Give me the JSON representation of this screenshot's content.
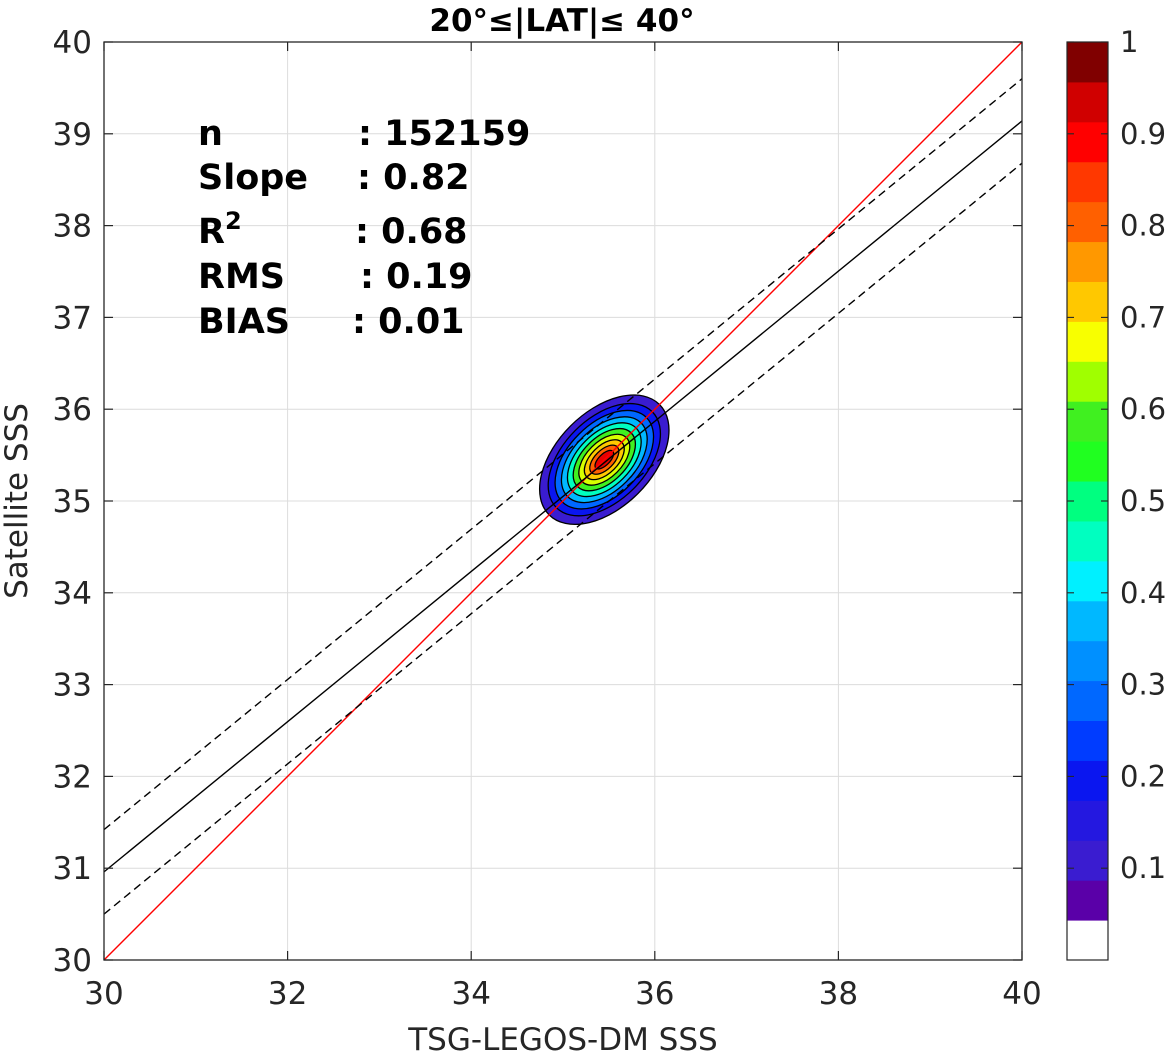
{
  "chart_data": {
    "type": "contour",
    "title": "20°≤|LAT|≤ 40°",
    "xlabel": "TSG-LEGOS-DM SSS",
    "ylabel": "Satellite SSS",
    "xlim": [
      30,
      40
    ],
    "ylim": [
      30,
      40
    ],
    "xticks": [
      "30",
      "32",
      "34",
      "36",
      "38",
      "40"
    ],
    "yticks": [
      "30",
      "31",
      "32",
      "33",
      "34",
      "35",
      "36",
      "37",
      "38",
      "39",
      "40"
    ],
    "grid": true,
    "stats": [
      {
        "label": "n",
        "sup": "",
        "value": ": 152159"
      },
      {
        "label": "Slope",
        "sup": "",
        "value": ": 0.82"
      },
      {
        "label": "R",
        "sup": "2",
        "value": ": 0.68"
      },
      {
        "label": "RMS",
        "sup": "",
        "value": ": 0.19"
      },
      {
        "label": "BIAS",
        "sup": "",
        "value": ": 0.01"
      }
    ],
    "lines": [
      {
        "name": "identity",
        "color": "#ff0000",
        "style": "solid",
        "x": [
          30,
          40
        ],
        "y": [
          30,
          40
        ]
      },
      {
        "name": "regression",
        "color": "#000000",
        "style": "solid",
        "x": [
          30,
          40
        ],
        "y": [
          30.96,
          39.14
        ]
      },
      {
        "name": "upper",
        "color": "#000000",
        "style": "dashed",
        "x": [
          30,
          40
        ],
        "y": [
          31.42,
          39.6
        ]
      },
      {
        "name": "lower",
        "color": "#000000",
        "style": "dashed",
        "x": [
          30,
          40
        ],
        "y": [
          30.5,
          38.68
        ]
      }
    ],
    "density_contours": {
      "center": [
        35.45,
        35.45
      ],
      "rotation_deg": 45,
      "outer_semi_axes": [
        0.85,
        0.52
      ],
      "inner_semi_axes": [
        0.13,
        0.06
      ],
      "levels": [
        0.05,
        0.15,
        0.25,
        0.35,
        0.45,
        0.55,
        0.65,
        0.75,
        0.85,
        0.95
      ],
      "colors": [
        "#3a1cd0",
        "#0a16f0",
        "#0068ff",
        "#00b8ff",
        "#00ffc0",
        "#40f020",
        "#d8ff00",
        "#ffc800",
        "#ff6000",
        "#e80000"
      ]
    },
    "colorbar": {
      "ticks": [
        "0.1",
        "0.2",
        "0.3",
        "0.4",
        "0.5",
        "0.6",
        "0.7",
        "0.8",
        "0.9",
        "1"
      ],
      "colors": [
        "#ffffff",
        "#5a00a8",
        "#3a1cd0",
        "#2418e0",
        "#0a16f0",
        "#003cff",
        "#0068ff",
        "#0090ff",
        "#00b8ff",
        "#00f0ff",
        "#00ffc0",
        "#00ff80",
        "#20ff20",
        "#40f020",
        "#a0ff00",
        "#f8ff00",
        "#ffc800",
        "#ff9800",
        "#ff6000",
        "#ff3800",
        "#ff0000",
        "#d00000",
        "#800000"
      ]
    }
  }
}
